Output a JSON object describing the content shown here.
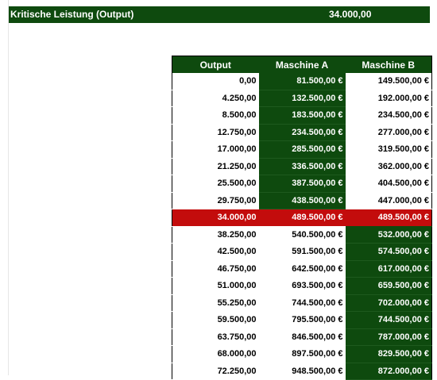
{
  "header": {
    "label": "Kritische Leistung (Output)",
    "value": "34.000,00"
  },
  "table": {
    "columns": [
      "Output",
      "Maschine A",
      "Maschine B"
    ],
    "critical_index": 8,
    "rows": [
      {
        "output": "0,00",
        "a": "81.500,00 €",
        "b": "149.500,00 €",
        "a_green": true,
        "b_green": false
      },
      {
        "output": "4.250,00",
        "a": "132.500,00 €",
        "b": "192.000,00 €",
        "a_green": true,
        "b_green": false
      },
      {
        "output": "8.500,00",
        "a": "183.500,00 €",
        "b": "234.500,00 €",
        "a_green": true,
        "b_green": false
      },
      {
        "output": "12.750,00",
        "a": "234.500,00 €",
        "b": "277.000,00 €",
        "a_green": true,
        "b_green": false
      },
      {
        "output": "17.000,00",
        "a": "285.500,00 €",
        "b": "319.500,00 €",
        "a_green": true,
        "b_green": false
      },
      {
        "output": "21.250,00",
        "a": "336.500,00 €",
        "b": "362.000,00 €",
        "a_green": true,
        "b_green": false
      },
      {
        "output": "25.500,00",
        "a": "387.500,00 €",
        "b": "404.500,00 €",
        "a_green": true,
        "b_green": false
      },
      {
        "output": "29.750,00",
        "a": "438.500,00 €",
        "b": "447.000,00 €",
        "a_green": true,
        "b_green": false
      },
      {
        "output": "34.000,00",
        "a": "489.500,00 €",
        "b": "489.500,00 €",
        "a_green": false,
        "b_green": false
      },
      {
        "output": "38.250,00",
        "a": "540.500,00 €",
        "b": "532.000,00 €",
        "a_green": false,
        "b_green": true
      },
      {
        "output": "42.500,00",
        "a": "591.500,00 €",
        "b": "574.500,00 €",
        "a_green": false,
        "b_green": true
      },
      {
        "output": "46.750,00",
        "a": "642.500,00 €",
        "b": "617.000,00 €",
        "a_green": false,
        "b_green": true
      },
      {
        "output": "51.000,00",
        "a": "693.500,00 €",
        "b": "659.500,00 €",
        "a_green": false,
        "b_green": true
      },
      {
        "output": "55.250,00",
        "a": "744.500,00 €",
        "b": "702.000,00 €",
        "a_green": false,
        "b_green": true
      },
      {
        "output": "59.500,00",
        "a": "795.500,00 €",
        "b": "744.500,00 €",
        "a_green": false,
        "b_green": true
      },
      {
        "output": "63.750,00",
        "a": "846.500,00 €",
        "b": "787.000,00 €",
        "a_green": false,
        "b_green": true
      },
      {
        "output": "68.000,00",
        "a": "897.500,00 €",
        "b": "829.500,00 €",
        "a_green": false,
        "b_green": true
      },
      {
        "output": "72.250,00",
        "a": "948.500,00 €",
        "b": "872.000,00 €",
        "a_green": false,
        "b_green": true
      }
    ]
  },
  "colors": {
    "green": "#0e4a0e",
    "critical": "#c30c0c"
  }
}
